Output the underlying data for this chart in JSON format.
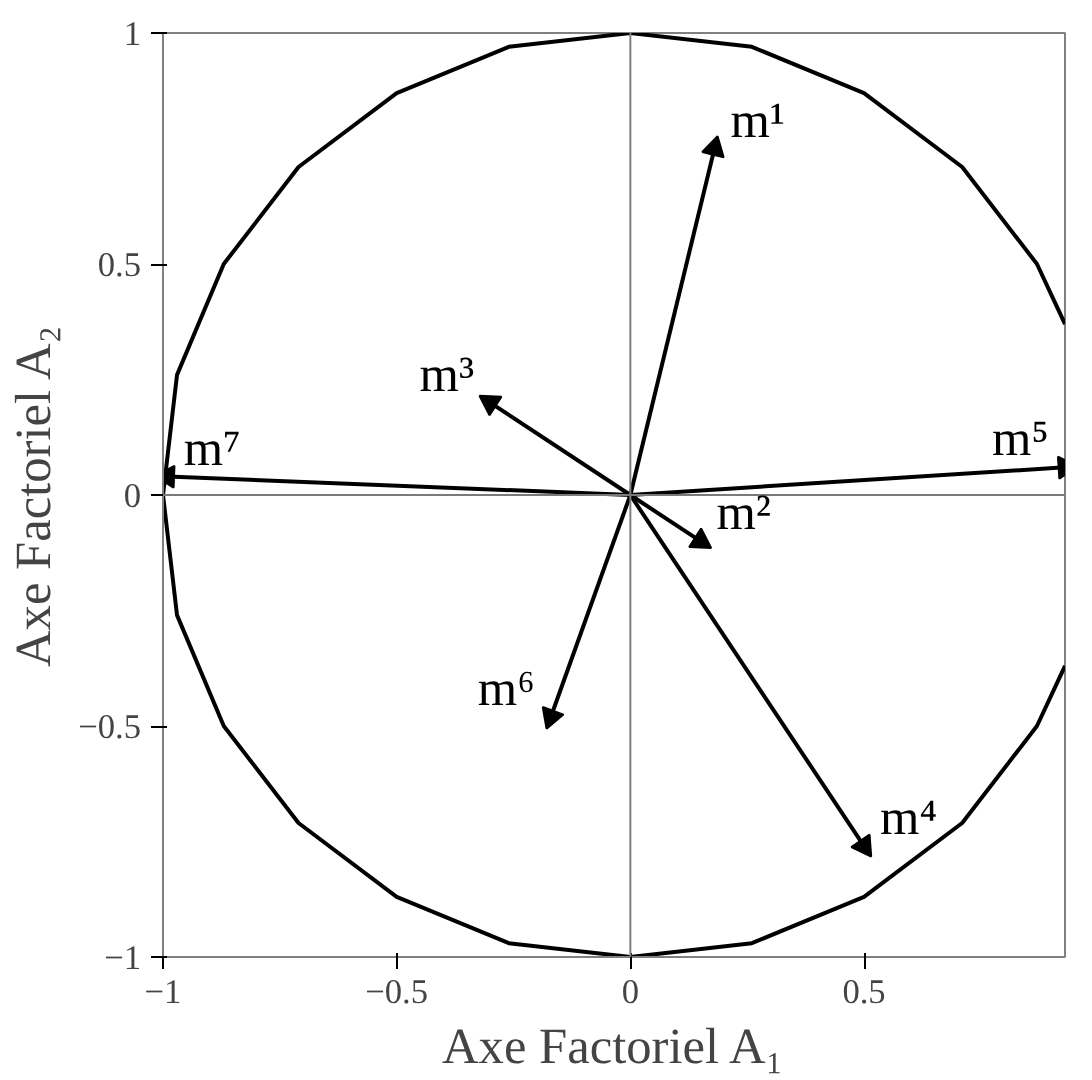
{
  "chart_data": {
    "type": "scatter",
    "xlabel": "Axe Factoriel A₁",
    "ylabel": "Axe Factoriel A₂",
    "xlim": [
      -1,
      0.93
    ],
    "ylim": [
      -1,
      1
    ],
    "xticks": [
      -1,
      -0.5,
      0,
      0.5
    ],
    "yticks": [
      -1,
      -0.5,
      0,
      0.5,
      1
    ],
    "grid": false,
    "ref_lines": [
      {
        "axis": "x",
        "value": 0,
        "color": "#808080"
      },
      {
        "axis": "y",
        "value": 0,
        "color": "#7a7a7a"
      }
    ],
    "series": [
      {
        "color": "#000000",
        "marker": "triangle",
        "x": [
          0.18,
          0.15,
          -0.3,
          0.5,
          0.93,
          -0.17,
          -0.99
        ],
        "values": [
          0.75,
          -0.1,
          0.2,
          -0.76,
          0.06,
          -0.48,
          0.04
        ],
        "value_labels": [
          "m¹",
          "m²",
          "m³",
          "m⁴",
          "m⁵",
          "m⁶",
          "m⁷"
        ]
      },
      {
        "type": "line",
        "color": "#000000",
        "x": [
          0.93,
          0.87,
          0.71,
          0.5,
          0.26,
          0,
          -0.26,
          -0.5,
          -0.71,
          -0.87,
          -0.97,
          -1,
          -0.97,
          -0.87,
          -0.71,
          -0.5,
          -0.26,
          0,
          0.26,
          0.5,
          0.71,
          0.87,
          0.93
        ],
        "values": [
          0.37,
          0.5,
          0.71,
          0.87,
          0.97,
          1,
          0.97,
          0.87,
          0.71,
          0.5,
          0.26,
          0,
          -0.26,
          -0.5,
          -0.71,
          -0.87,
          -0.97,
          -1,
          -0.97,
          -0.87,
          -0.71,
          -0.5,
          -0.37
        ]
      }
    ]
  }
}
